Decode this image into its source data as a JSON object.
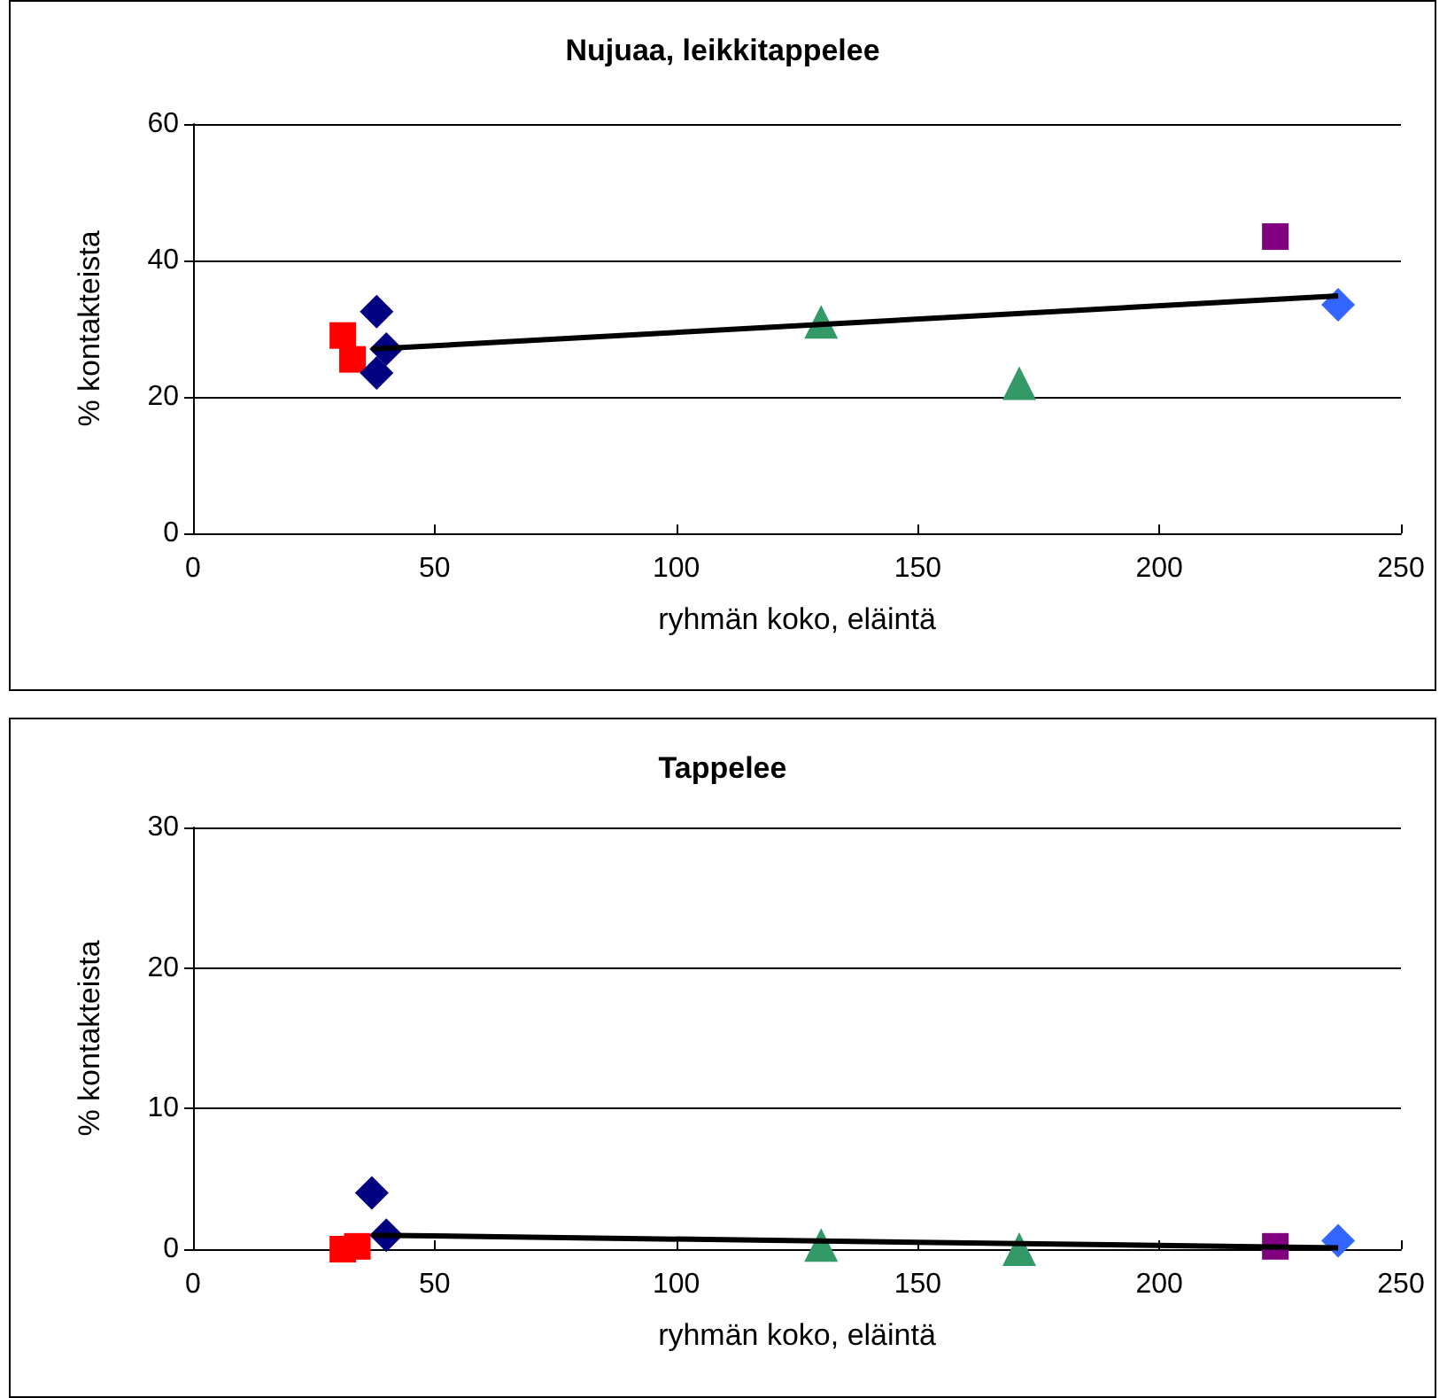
{
  "chart_data": [
    {
      "type": "scatter",
      "title": "Nujuaa, leikkitappelee",
      "xlabel": "ryhmän koko, eläintä",
      "ylabel": "% kontakteista",
      "xlim": [
        0,
        250
      ],
      "xticks": [
        0,
        50,
        100,
        150,
        200,
        250
      ],
      "ylim": [
        0,
        60
      ],
      "yticks": [
        0,
        20,
        40,
        60
      ],
      "grid": "y",
      "series": [
        {
          "color": "#ff0000",
          "marker": "square",
          "x": [
            31,
            33
          ],
          "values": [
            29,
            25.5
          ]
        },
        {
          "color": "#000080",
          "marker": "diamond",
          "x": [
            38,
            40,
            38
          ],
          "values": [
            32.5,
            27,
            23.5
          ]
        },
        {
          "color": "#339966",
          "marker": "triangle",
          "x": [
            130,
            171
          ],
          "values": [
            31,
            22
          ]
        },
        {
          "color": "#800080",
          "marker": "square",
          "x": [
            224
          ],
          "values": [
            43.5
          ]
        },
        {
          "color": "#3366ff",
          "marker": "diamond",
          "x": [
            237
          ],
          "values": [
            33.5
          ]
        },
        {
          "type": "line",
          "color": "#000000",
          "marker": "none",
          "x": [
            37,
            237
          ],
          "values": [
            27,
            34.8
          ]
        }
      ]
    },
    {
      "type": "scatter",
      "title": "Tappelee",
      "xlabel": "ryhmän koko, eläintä",
      "ylabel": "% kontakteista",
      "xlim": [
        0,
        250
      ],
      "xticks": [
        0,
        50,
        100,
        150,
        200,
        250
      ],
      "ylim": [
        0,
        30
      ],
      "yticks": [
        0,
        10,
        20,
        30
      ],
      "grid": "y",
      "series": [
        {
          "color": "#ff0000",
          "marker": "square",
          "x": [
            31,
            34
          ],
          "values": [
            0,
            0.2
          ]
        },
        {
          "color": "#000080",
          "marker": "diamond",
          "x": [
            37,
            40
          ],
          "values": [
            4,
            1
          ]
        },
        {
          "color": "#339966",
          "marker": "triangle",
          "x": [
            130,
            171
          ],
          "values": [
            0.3,
            0
          ]
        },
        {
          "color": "#800080",
          "marker": "square",
          "x": [
            224
          ],
          "values": [
            0.2
          ]
        },
        {
          "color": "#3366ff",
          "marker": "diamond",
          "x": [
            237
          ],
          "values": [
            0.6
          ]
        },
        {
          "type": "line",
          "color": "#000000",
          "marker": "none",
          "x": [
            37,
            237
          ],
          "values": [
            1,
            0.1
          ]
        }
      ]
    }
  ]
}
